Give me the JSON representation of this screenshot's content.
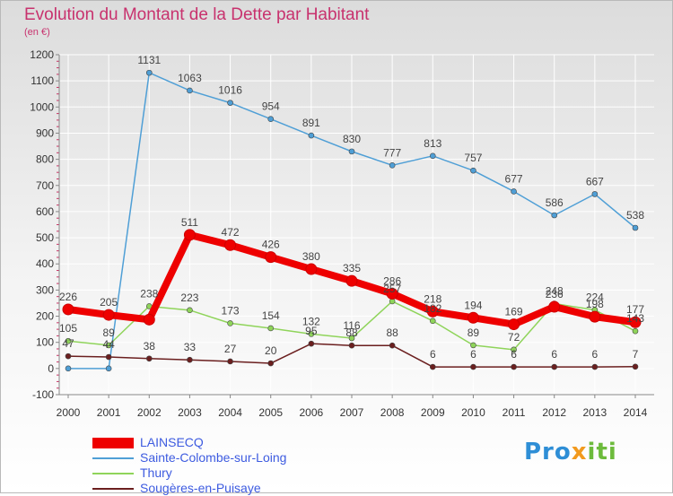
{
  "title": "Evolution du Montant de la Dette par Habitant",
  "subtitle": "(en €)",
  "logo": {
    "part1": "Pro",
    "part2": "x",
    "part3": "iti"
  },
  "chart_data": {
    "type": "line",
    "title": "Evolution du Montant de la Dette par Habitant",
    "ylabel": "(en €)",
    "x": [
      "2000",
      "2001",
      "2002",
      "2003",
      "2004",
      "2005",
      "2006",
      "2007",
      "2008",
      "2009",
      "2010",
      "2011",
      "2012",
      "2013",
      "2014"
    ],
    "ylim": [
      -100,
      1200
    ],
    "yticks": [
      -100,
      0,
      100,
      200,
      300,
      400,
      500,
      600,
      700,
      800,
      900,
      1000,
      1100,
      1200
    ],
    "grid": true,
    "legend_position": "bottom-left",
    "series": [
      {
        "name": "LAINSECQ",
        "color": "#ee0000",
        "values": [
          226,
          205,
          187,
          511,
          472,
          426,
          380,
          335,
          286,
          218,
          194,
          169,
          236,
          198,
          177
        ],
        "labels": [
          "226",
          "205",
          "",
          "511",
          "472",
          "426",
          "380",
          "335",
          "286",
          "218",
          "194",
          "169",
          "236",
          "198",
          "177"
        ]
      },
      {
        "name": "Sainte-Colombe-sur-Loing",
        "color": "#4f9fd6",
        "values": [
          0,
          0,
          1131,
          1063,
          1016,
          954,
          891,
          830,
          777,
          813,
          757,
          677,
          586,
          667,
          538
        ],
        "labels": [
          "",
          "",
          "1131",
          "1063",
          "1016",
          "954",
          "891",
          "830",
          "777",
          "813",
          "757",
          "677",
          "586",
          "667",
          "538"
        ]
      },
      {
        "name": "Thury",
        "color": "#8fd45a",
        "values": [
          105,
          89,
          238,
          223,
          173,
          154,
          132,
          116,
          257,
          182,
          89,
          72,
          248,
          224,
          143
        ],
        "labels": [
          "105",
          "89",
          "238",
          "223",
          "173",
          "154",
          "132",
          "116",
          "257",
          "182",
          "89",
          "72",
          "248",
          "224",
          "143"
        ]
      },
      {
        "name": "Sougères-en-Puisaye",
        "color": "#6b1f1f",
        "values": [
          47,
          44,
          38,
          33,
          27,
          20,
          95,
          88,
          88,
          6,
          6,
          6,
          6,
          6,
          7
        ],
        "labels": [
          "47",
          "44",
          "38",
          "33",
          "27",
          "20",
          "95",
          "88",
          "88",
          "6",
          "6",
          "6",
          "6",
          "6",
          "7"
        ]
      }
    ]
  }
}
